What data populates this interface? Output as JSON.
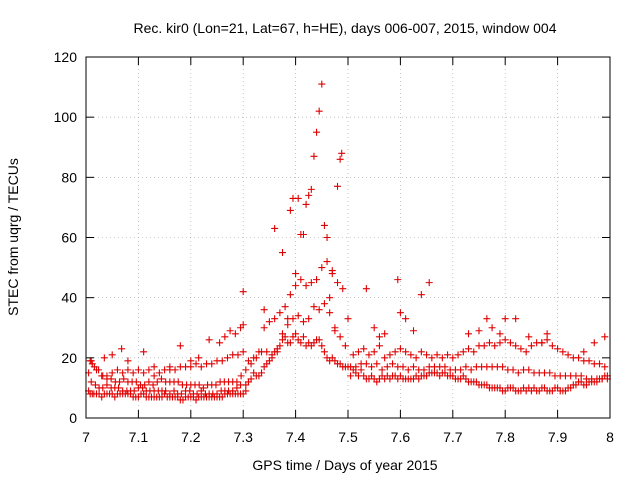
{
  "chart_data": {
    "type": "scatter",
    "title": "Rec. kir0 (Lon=21, Lat=67, h=HE), days 006-007, 2015, window 004",
    "xlabel": "GPS time / Days of year 2015",
    "ylabel": "STEC from uqrg / TECUs",
    "xlim": [
      7.0,
      8.0
    ],
    "ylim": [
      0,
      120
    ],
    "xticks": [
      7.0,
      7.1,
      7.2,
      7.3,
      7.4,
      7.5,
      7.6,
      7.7,
      7.8,
      7.9,
      8.0
    ],
    "xtick_labels": [
      "7",
      "7.1",
      "7.2",
      "7.3",
      "7.4",
      "7.5",
      "7.6",
      "7.7",
      "7.8",
      "7.9",
      "8"
    ],
    "yticks": [
      0,
      20,
      40,
      60,
      80,
      100,
      120
    ],
    "ytick_labels": [
      "0",
      "20",
      "40",
      "60",
      "80",
      "100",
      "120"
    ],
    "grid": true,
    "marker": "+",
    "color": "#e00000",
    "series": [
      {
        "name": "STEC",
        "x": [
          7.005,
          7.008,
          7.012,
          7.015,
          7.02,
          7.025,
          7.03,
          7.035,
          7.04,
          7.045,
          7.05,
          7.055,
          7.06,
          7.065,
          7.07,
          7.075,
          7.08,
          7.085,
          7.09,
          7.095,
          7.1,
          7.105,
          7.11,
          7.115,
          7.12,
          7.125,
          7.13,
          7.135,
          7.14,
          7.145,
          7.15,
          7.155,
          7.16,
          7.165,
          7.17,
          7.175,
          7.18,
          7.185,
          7.19,
          7.195,
          7.2,
          7.205,
          7.21,
          7.215,
          7.22,
          7.225,
          7.23,
          7.235,
          7.24,
          7.245,
          7.25,
          7.255,
          7.26,
          7.265,
          7.27,
          7.275,
          7.28,
          7.285,
          7.29,
          7.295,
          7.3,
          7.305,
          7.005,
          7.01,
          7.018,
          7.025,
          7.032,
          7.04,
          7.048,
          7.055,
          7.062,
          7.07,
          7.078,
          7.085,
          7.092,
          7.1,
          7.108,
          7.115,
          7.122,
          7.13,
          7.138,
          7.145,
          7.152,
          7.16,
          7.168,
          7.175,
          7.182,
          7.19,
          7.198,
          7.205,
          7.212,
          7.22,
          7.228,
          7.235,
          7.242,
          7.25,
          7.258,
          7.265,
          7.272,
          7.28,
          7.288,
          7.295,
          7.008,
          7.016,
          7.024,
          7.032,
          7.04,
          7.048,
          7.056,
          7.064,
          7.072,
          7.08,
          7.088,
          7.096,
          7.104,
          7.112,
          7.12,
          7.128,
          7.136,
          7.144,
          7.152,
          7.16,
          7.168,
          7.176,
          7.184,
          7.192,
          7.2,
          7.208,
          7.216,
          7.224,
          7.232,
          7.24,
          7.248,
          7.256,
          7.264,
          7.272,
          7.28,
          7.288,
          7.296,
          7.01,
          7.02,
          7.03,
          7.04,
          7.05,
          7.06,
          7.07,
          7.08,
          7.09,
          7.1,
          7.11,
          7.12,
          7.13,
          7.14,
          7.15,
          7.16,
          7.17,
          7.18,
          7.19,
          7.2,
          7.21,
          7.22,
          7.23,
          7.24,
          7.25,
          7.26,
          7.27,
          7.28,
          7.29,
          7.3,
          7.012,
          7.035,
          7.05,
          7.068,
          7.08,
          7.11,
          7.13,
          7.16,
          7.18,
          7.2,
          7.215,
          7.235,
          7.255,
          7.265,
          7.275,
          7.285,
          7.295,
          7.3,
          7.305,
          7.31,
          7.315,
          7.32,
          7.325,
          7.33,
          7.335,
          7.34,
          7.345,
          7.35,
          7.355,
          7.36,
          7.365,
          7.37,
          7.375,
          7.38,
          7.385,
          7.39,
          7.395,
          7.4,
          7.405,
          7.41,
          7.415,
          7.42,
          7.425,
          7.43,
          7.435,
          7.44,
          7.445,
          7.45,
          7.455,
          7.46,
          7.465,
          7.47,
          7.475,
          7.48,
          7.485,
          7.49,
          7.495,
          7.5,
          7.305,
          7.315,
          7.325,
          7.335,
          7.345,
          7.355,
          7.365,
          7.375,
          7.385,
          7.395,
          7.405,
          7.415,
          7.425,
          7.435,
          7.445,
          7.455,
          7.465,
          7.475,
          7.485,
          7.495,
          7.31,
          7.32,
          7.33,
          7.34,
          7.35,
          7.36,
          7.37,
          7.38,
          7.39,
          7.4,
          7.41,
          7.42,
          7.43,
          7.44,
          7.45,
          7.46,
          7.47,
          7.48,
          7.49,
          7.5,
          7.3,
          7.34,
          7.36,
          7.375,
          7.385,
          7.39,
          7.395,
          7.4,
          7.405,
          7.41,
          7.415,
          7.42,
          7.425,
          7.43,
          7.435,
          7.44,
          7.445,
          7.45,
          7.455,
          7.46,
          7.465,
          7.47,
          7.475,
          7.48,
          7.485,
          7.488,
          7.505,
          7.51,
          7.515,
          7.52,
          7.525,
          7.53,
          7.535,
          7.54,
          7.545,
          7.55,
          7.555,
          7.56,
          7.565,
          7.57,
          7.575,
          7.58,
          7.585,
          7.59,
          7.595,
          7.6,
          7.605,
          7.61,
          7.615,
          7.62,
          7.625,
          7.63,
          7.635,
          7.64,
          7.645,
          7.65,
          7.655,
          7.66,
          7.665,
          7.67,
          7.675,
          7.68,
          7.685,
          7.69,
          7.695,
          7.7,
          7.505,
          7.515,
          7.525,
          7.535,
          7.545,
          7.555,
          7.565,
          7.575,
          7.585,
          7.595,
          7.605,
          7.615,
          7.625,
          7.635,
          7.645,
          7.655,
          7.665,
          7.675,
          7.685,
          7.695,
          7.51,
          7.52,
          7.53,
          7.54,
          7.55,
          7.56,
          7.57,
          7.58,
          7.59,
          7.6,
          7.61,
          7.62,
          7.63,
          7.64,
          7.65,
          7.66,
          7.67,
          7.68,
          7.69,
          7.7,
          7.55,
          7.57,
          7.6,
          7.61,
          7.625,
          7.64,
          7.655,
          7.595,
          7.535,
          7.56,
          7.705,
          7.71,
          7.715,
          7.72,
          7.725,
          7.73,
          7.735,
          7.74,
          7.745,
          7.75,
          7.755,
          7.76,
          7.765,
          7.77,
          7.775,
          7.78,
          7.785,
          7.79,
          7.795,
          7.8,
          7.805,
          7.81,
          7.815,
          7.82,
          7.825,
          7.83,
          7.835,
          7.84,
          7.845,
          7.85,
          7.855,
          7.86,
          7.865,
          7.87,
          7.875,
          7.88,
          7.885,
          7.89,
          7.895,
          7.9,
          7.905,
          7.91,
          7.915,
          7.92,
          7.925,
          7.93,
          7.935,
          7.94,
          7.945,
          7.95,
          7.955,
          7.96,
          7.965,
          7.97,
          7.975,
          7.98,
          7.985,
          7.99,
          7.995,
          7.705,
          7.715,
          7.725,
          7.735,
          7.745,
          7.755,
          7.765,
          7.775,
          7.785,
          7.795,
          7.805,
          7.815,
          7.825,
          7.835,
          7.845,
          7.855,
          7.865,
          7.875,
          7.885,
          7.895,
          7.905,
          7.915,
          7.925,
          7.935,
          7.945,
          7.955,
          7.965,
          7.975,
          7.985,
          7.995,
          7.71,
          7.72,
          7.73,
          7.74,
          7.75,
          7.76,
          7.77,
          7.78,
          7.79,
          7.8,
          7.81,
          7.82,
          7.83,
          7.84,
          7.85,
          7.86,
          7.87,
          7.88,
          7.89,
          7.9,
          7.91,
          7.92,
          7.93,
          7.94,
          7.95,
          7.96,
          7.97,
          7.98,
          7.99,
          7.73,
          7.75,
          7.765,
          7.775,
          7.79,
          7.8,
          7.82,
          7.845,
          7.87,
          7.88,
          7.95,
          7.97,
          7.99
        ],
        "y": [
          9,
          8,
          8,
          8,
          8,
          8,
          7,
          8,
          8,
          8,
          8,
          7,
          8,
          8,
          8,
          8,
          8,
          8,
          7,
          7,
          7,
          8,
          8,
          7,
          7,
          7,
          7,
          7,
          7,
          7,
          8,
          7,
          7,
          7,
          7,
          7,
          6,
          6,
          7,
          7,
          7,
          7,
          6,
          7,
          7,
          7,
          7,
          7,
          7,
          7,
          7,
          7,
          7,
          8,
          8,
          8,
          8,
          8,
          8,
          8,
          8,
          9,
          15,
          12,
          11,
          10,
          10,
          11,
          10,
          10,
          10,
          9,
          9,
          9,
          9,
          10,
          10,
          9,
          9,
          9,
          9,
          9,
          9,
          8,
          9,
          8,
          8,
          9,
          9,
          8,
          8,
          9,
          8,
          8,
          8,
          8,
          9,
          9,
          9,
          9,
          10,
          11,
          19,
          17,
          16,
          14,
          13,
          13,
          12,
          12,
          13,
          12,
          12,
          12,
          11,
          11,
          12,
          11,
          12,
          13,
          12,
          12,
          12,
          12,
          11,
          11,
          11,
          11,
          11,
          10,
          11,
          11,
          11,
          12,
          12,
          12,
          12,
          12,
          14,
          19,
          16,
          14,
          14,
          15,
          16,
          15,
          16,
          15,
          16,
          15,
          16,
          14,
          15,
          16,
          16,
          16,
          17,
          17,
          17,
          18,
          17,
          18,
          18,
          19,
          19,
          20,
          21,
          21,
          22,
          18,
          20,
          21,
          23,
          19,
          22,
          17,
          17,
          24,
          19,
          20,
          26,
          25,
          27,
          29,
          28,
          30,
          31,
          11,
          12,
          13,
          15,
          14,
          14,
          15,
          17,
          18,
          19,
          20,
          22,
          22,
          24,
          26,
          27,
          25,
          25,
          27,
          28,
          26,
          25,
          27,
          24,
          25,
          24,
          25,
          26,
          26,
          24,
          22,
          20,
          19,
          20,
          19,
          18,
          18,
          17,
          17,
          17,
          16,
          18,
          20,
          22,
          22,
          21,
          23,
          28,
          31,
          33,
          34,
          32,
          33,
          37,
          36,
          38,
          35,
          30,
          27,
          24,
          19,
          20,
          22,
          30,
          32,
          33,
          35,
          37,
          41,
          44,
          46,
          44,
          45,
          46,
          50,
          52,
          48,
          45,
          43,
          33,
          42,
          36,
          63,
          55,
          33,
          69,
          73,
          48,
          73,
          61,
          61,
          71,
          74,
          76,
          87,
          95,
          102,
          111,
          64,
          60,
          40,
          49,
          29,
          77,
          86,
          88,
          14,
          16,
          15,
          14,
          16,
          14,
          13,
          13,
          14,
          13,
          12,
          13,
          14,
          13,
          14,
          13,
          14,
          14,
          13,
          14,
          13,
          13,
          13,
          13,
          13,
          14,
          13,
          14,
          14,
          14,
          15,
          15,
          15,
          15,
          14,
          15,
          15,
          14,
          14,
          14,
          17,
          17,
          18,
          18,
          17,
          18,
          16,
          17,
          18,
          17,
          17,
          16,
          17,
          16,
          16,
          17,
          17,
          17,
          17,
          16,
          21,
          22,
          23,
          21,
          22,
          24,
          20,
          21,
          22,
          23,
          22,
          21,
          20,
          22,
          21,
          20,
          21,
          20,
          21,
          20,
          30,
          28,
          35,
          33,
          29,
          41,
          45,
          46,
          43,
          27,
          13,
          13,
          13,
          14,
          13,
          12,
          12,
          12,
          12,
          11,
          11,
          11,
          11,
          10,
          10,
          10,
          10,
          10,
          9,
          9,
          10,
          10,
          10,
          9,
          9,
          9,
          10,
          9,
          10,
          9,
          10,
          9,
          9,
          10,
          10,
          9,
          9,
          9,
          10,
          10,
          9,
          9,
          9,
          10,
          10,
          11,
          11,
          12,
          12,
          11,
          11,
          12,
          12,
          12,
          12,
          13,
          13,
          14,
          14,
          16,
          16,
          17,
          16,
          17,
          17,
          17,
          17,
          17,
          17,
          16,
          16,
          15,
          16,
          16,
          15,
          15,
          15,
          15,
          14,
          14,
          14,
          14,
          14,
          14,
          13,
          13,
          13,
          13,
          13,
          21,
          22,
          23,
          22,
          24,
          24,
          25,
          24,
          25,
          26,
          25,
          24,
          23,
          22,
          24,
          25,
          25,
          26,
          24,
          23,
          22,
          21,
          20,
          20,
          19,
          19,
          18,
          18,
          17,
          28,
          29,
          33,
          30,
          28,
          33,
          33,
          27,
          25,
          28,
          22,
          25,
          27
        ]
      }
    ]
  }
}
